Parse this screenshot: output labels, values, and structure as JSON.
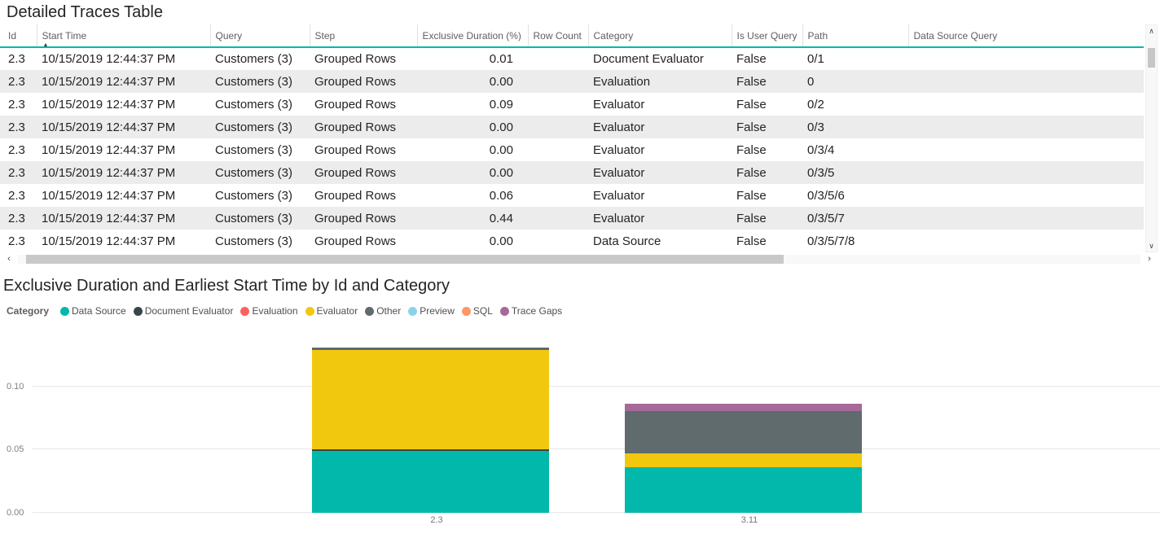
{
  "table_visual": {
    "title": "Detailed Traces Table",
    "columns": [
      {
        "label": "Id"
      },
      {
        "label": "Start Time",
        "sorted": "asc"
      },
      {
        "label": "Query"
      },
      {
        "label": "Step"
      },
      {
        "label": "Exclusive Duration (%)",
        "numeric": true
      },
      {
        "label": "Row Count"
      },
      {
        "label": "Category"
      },
      {
        "label": "Is User Query"
      },
      {
        "label": "Path"
      },
      {
        "label": "Data Source Query"
      }
    ],
    "rows": [
      [
        "2.3",
        "10/15/2019 12:44:37 PM",
        "Customers (3)",
        "Grouped Rows",
        "0.01",
        "",
        "Document Evaluator",
        "False",
        "0/1",
        ""
      ],
      [
        "2.3",
        "10/15/2019 12:44:37 PM",
        "Customers (3)",
        "Grouped Rows",
        "0.00",
        "",
        "Evaluation",
        "False",
        "0",
        ""
      ],
      [
        "2.3",
        "10/15/2019 12:44:37 PM",
        "Customers (3)",
        "Grouped Rows",
        "0.09",
        "",
        "Evaluator",
        "False",
        "0/2",
        ""
      ],
      [
        "2.3",
        "10/15/2019 12:44:37 PM",
        "Customers (3)",
        "Grouped Rows",
        "0.00",
        "",
        "Evaluator",
        "False",
        "0/3",
        ""
      ],
      [
        "2.3",
        "10/15/2019 12:44:37 PM",
        "Customers (3)",
        "Grouped Rows",
        "0.00",
        "",
        "Evaluator",
        "False",
        "0/3/4",
        ""
      ],
      [
        "2.3",
        "10/15/2019 12:44:37 PM",
        "Customers (3)",
        "Grouped Rows",
        "0.00",
        "",
        "Evaluator",
        "False",
        "0/3/5",
        ""
      ],
      [
        "2.3",
        "10/15/2019 12:44:37 PM",
        "Customers (3)",
        "Grouped Rows",
        "0.06",
        "",
        "Evaluator",
        "False",
        "0/3/5/6",
        ""
      ],
      [
        "2.3",
        "10/15/2019 12:44:37 PM",
        "Customers (3)",
        "Grouped Rows",
        "0.44",
        "",
        "Evaluator",
        "False",
        "0/3/5/7",
        ""
      ],
      [
        "2.3",
        "10/15/2019 12:44:37 PM",
        "Customers (3)",
        "Grouped Rows",
        "0.00",
        "",
        "Data Source",
        "False",
        "0/3/5/7/8",
        ""
      ]
    ],
    "accent_color": "#01B8AA",
    "alt_row_color": "#ECECEC"
  },
  "chart_data": {
    "type": "bar",
    "stacked": true,
    "title": "Exclusive Duration and Earliest Start Time by Id and Category",
    "legend_title": "Category",
    "legend_position": "top",
    "categories": [
      "2.3",
      "3.11"
    ],
    "series": [
      {
        "name": "Data Source",
        "color": "#01B8AA",
        "values": [
          0.049,
          0.036
        ]
      },
      {
        "name": "Document Evaluator",
        "color": "#374649",
        "values": [
          0.0015,
          0
        ]
      },
      {
        "name": "Evaluation",
        "color": "#FD625E",
        "values": [
          0,
          0
        ]
      },
      {
        "name": "Evaluator",
        "color": "#F2C80F",
        "values": [
          0.0785,
          0.011
        ]
      },
      {
        "name": "Other",
        "color": "#5F6B6D",
        "values": [
          0.0015,
          0.0335
        ]
      },
      {
        "name": "Preview",
        "color": "#8AD4EB",
        "values": [
          0,
          0
        ]
      },
      {
        "name": "SQL",
        "color": "#FE9666",
        "values": [
          0,
          0
        ]
      },
      {
        "name": "Trace Gaps",
        "color": "#A66999",
        "values": [
          0,
          0.006
        ]
      }
    ],
    "xlabel": "",
    "ylabel": "",
    "y_ticks": [
      0,
      0.05,
      0.1
    ],
    "ylim": [
      0,
      0.148
    ],
    "grid": true
  },
  "icons": {
    "sort_ascending": "▲",
    "scroll_up": "∧",
    "scroll_down": "∨",
    "scroll_left": "‹",
    "scroll_right": "›"
  }
}
